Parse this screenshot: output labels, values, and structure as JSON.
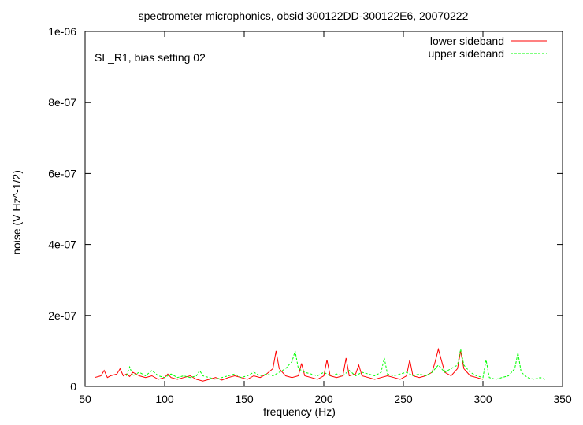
{
  "chart_data": {
    "type": "line",
    "title": "spectrometer microphonics, obsid 300122DD-300122E6, 20070222",
    "annotation": "SL_R1, bias setting 02",
    "xlabel": "frequency (Hz)",
    "ylabel": "noise (V Hz^-1/2)",
    "xlim": [
      50,
      350
    ],
    "ylim": [
      0,
      1e-06
    ],
    "xticks": [
      50,
      100,
      150,
      200,
      250,
      300,
      350
    ],
    "xtick_labels": [
      "50",
      "100",
      "150",
      "200",
      "250",
      "300",
      "350"
    ],
    "yticks": [
      0,
      2e-07,
      4e-07,
      6e-07,
      8e-07,
      1e-06
    ],
    "ytick_labels": [
      "0",
      "2e-07",
      "4e-07",
      "6e-07",
      "8e-07",
      "1e-06"
    ],
    "grid": false,
    "legend_position": "top-right",
    "series": [
      {
        "name": "lower sideband",
        "color": "#ff0000",
        "dash": "solid",
        "x": [
          56,
          60,
          62,
          64,
          66,
          70,
          72,
          74,
          76,
          78,
          80,
          84,
          88,
          92,
          96,
          100,
          102,
          104,
          108,
          112,
          116,
          120,
          124,
          128,
          132,
          136,
          140,
          144,
          148,
          152,
          156,
          160,
          164,
          168,
          170,
          172,
          176,
          180,
          184,
          186,
          188,
          192,
          196,
          200,
          202,
          204,
          208,
          212,
          214,
          216,
          220,
          222,
          224,
          228,
          232,
          236,
          240,
          244,
          248,
          252,
          254,
          256,
          260,
          264,
          268,
          270,
          272,
          276,
          280,
          284,
          286,
          288,
          292,
          296,
          300
        ],
        "y": [
          2.5e-08,
          3e-08,
          4.5e-08,
          2.5e-08,
          3e-08,
          3.5e-08,
          5e-08,
          3e-08,
          3.5e-08,
          2.8e-08,
          4e-08,
          3e-08,
          2.5e-08,
          3e-08,
          2e-08,
          2.5e-08,
          3.5e-08,
          2.5e-08,
          2e-08,
          2.5e-08,
          3e-08,
          2e-08,
          1.5e-08,
          2e-08,
          2.5e-08,
          1.8e-08,
          2.5e-08,
          3e-08,
          2.5e-08,
          2e-08,
          3e-08,
          2.5e-08,
          3.5e-08,
          5e-08,
          1e-07,
          5e-08,
          3e-08,
          2.5e-08,
          3e-08,
          6.5e-08,
          3e-08,
          2.5e-08,
          2e-08,
          3e-08,
          7.5e-08,
          3e-08,
          2.5e-08,
          3e-08,
          8e-08,
          3e-08,
          3.5e-08,
          6e-08,
          3e-08,
          2.5e-08,
          2e-08,
          2.5e-08,
          3e-08,
          2.5e-08,
          2e-08,
          3e-08,
          7.5e-08,
          3e-08,
          2.5e-08,
          3e-08,
          4e-08,
          7e-08,
          1.05e-07,
          4e-08,
          3e-08,
          5e-08,
          1e-07,
          5e-08,
          3e-08,
          2.5e-08,
          2e-08
        ]
      },
      {
        "name": "upper sideband",
        "color": "#00ff00",
        "dash": "dashed",
        "x": [
          76,
          78,
          80,
          84,
          88,
          92,
          96,
          100,
          104,
          108,
          112,
          116,
          120,
          122,
          124,
          128,
          132,
          136,
          140,
          144,
          148,
          152,
          156,
          160,
          164,
          168,
          172,
          176,
          180,
          182,
          184,
          188,
          192,
          196,
          200,
          204,
          208,
          212,
          216,
          220,
          224,
          228,
          232,
          236,
          238,
          240,
          244,
          248,
          252,
          256,
          260,
          264,
          268,
          272,
          276,
          280,
          284,
          286,
          288,
          292,
          296,
          300,
          302,
          304,
          308,
          312,
          316,
          320,
          322,
          324,
          328,
          332,
          336,
          339
        ],
        "y": [
          3e-08,
          5.5e-08,
          3e-08,
          4e-08,
          3e-08,
          4.5e-08,
          3e-08,
          2.5e-08,
          3.5e-08,
          2.5e-08,
          3e-08,
          2.5e-08,
          3e-08,
          4.5e-08,
          3e-08,
          2.5e-08,
          2e-08,
          2.5e-08,
          3e-08,
          3.5e-08,
          2.5e-08,
          3e-08,
          4e-08,
          3e-08,
          3.5e-08,
          3e-08,
          4e-08,
          5e-08,
          7e-08,
          1e-07,
          5e-08,
          4e-08,
          3.5e-08,
          3e-08,
          4e-08,
          3e-08,
          3.5e-08,
          3e-08,
          4.5e-08,
          3e-08,
          4e-08,
          3.5e-08,
          3e-08,
          4e-08,
          8e-08,
          3.5e-08,
          3e-08,
          3.5e-08,
          4e-08,
          3e-08,
          3.5e-08,
          3e-08,
          4e-08,
          6e-08,
          4e-08,
          5e-08,
          6e-08,
          1.05e-07,
          6e-08,
          4e-08,
          3e-08,
          2.5e-08,
          7.5e-08,
          2.5e-08,
          2e-08,
          2.5e-08,
          3e-08,
          5e-08,
          9.5e-08,
          4e-08,
          2.5e-08,
          2e-08,
          2.5e-08,
          2e-08
        ]
      }
    ]
  }
}
